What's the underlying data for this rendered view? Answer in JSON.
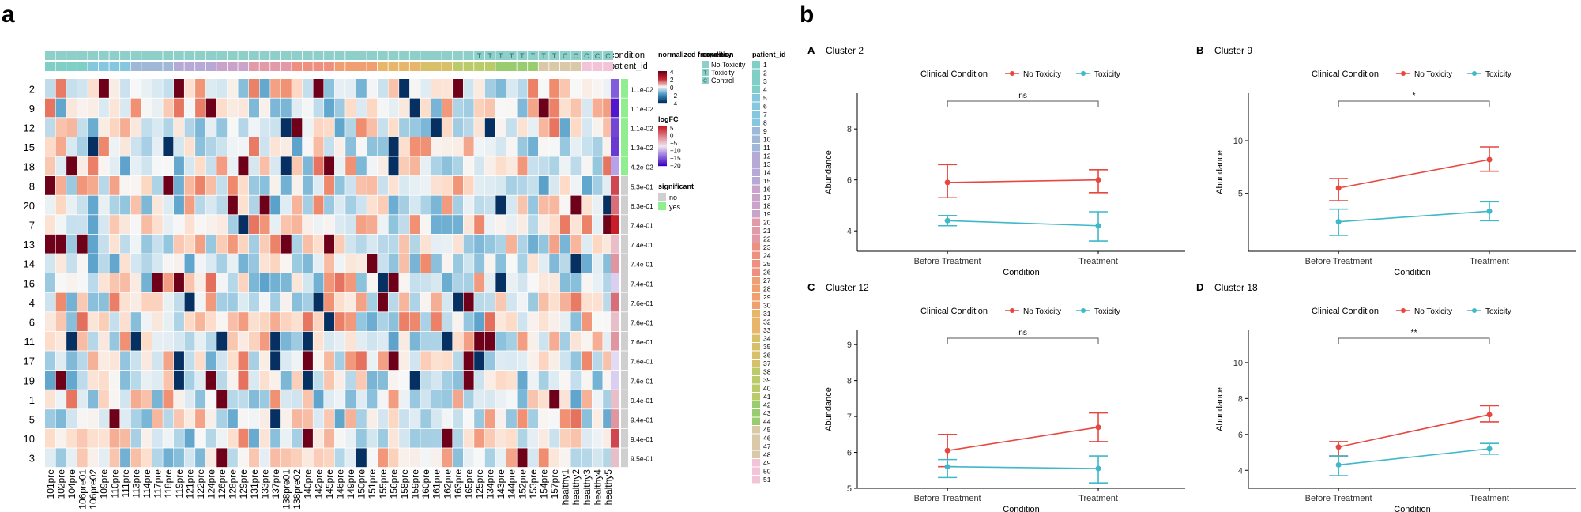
{
  "panel_a": {
    "label": "a",
    "columns": [
      "101pre",
      "102pre",
      "104pre",
      "106pre01",
      "106pre02",
      "109pre",
      "110pre",
      "111pre",
      "113pre",
      "114pre",
      "117pre",
      "118pre",
      "119pre",
      "121pre",
      "122pre",
      "124pre",
      "126pre",
      "128pre",
      "129pre",
      "131pre",
      "133pre",
      "137pre",
      "138pre01",
      "138pre02",
      "140pre",
      "142pre",
      "145pre",
      "146pre",
      "149pre",
      "150pre",
      "151pre",
      "155pre",
      "156pre",
      "158pre",
      "159pre",
      "160pre",
      "161pre",
      "162pre",
      "163pre",
      "165pre",
      "125pre",
      "134pre",
      "143pre",
      "144pre",
      "152pre",
      "153pre",
      "154pre",
      "157pre",
      "healthy1",
      "healthy2",
      "healthy3",
      "healthy4",
      "healthy5"
    ],
    "rows": [
      "2",
      "9",
      "12",
      "15",
      "18",
      "8",
      "20",
      "7",
      "13",
      "14",
      "16",
      "4",
      "6",
      "11",
      "17",
      "19",
      "1",
      "5",
      "10",
      "3"
    ],
    "pvalues": [
      "1.1e-02",
      "1.1e-02",
      "1.1e-02",
      "1.3e-02",
      "4.2e-02",
      "5.3e-01",
      "6.3e-01",
      "7.4e-01",
      "7.4e-01",
      "7.4e-01",
      "7.4e-01",
      "7.6e-01",
      "7.6e-01",
      "7.6e-01",
      "7.6e-01",
      "7.6e-01",
      "9.4e-01",
      "9.4e-01",
      "9.4e-01",
      "9.5e-01"
    ],
    "significant": [
      "yes",
      "yes",
      "yes",
      "yes",
      "yes",
      "no",
      "no",
      "no",
      "no",
      "no",
      "no",
      "no",
      "no",
      "no",
      "no",
      "no",
      "no",
      "no",
      "no",
      "no"
    ],
    "logfc": [
      -12,
      -18,
      -14,
      -15,
      -6,
      4,
      3,
      5,
      1,
      2,
      -2,
      3,
      1,
      2,
      -1,
      -2,
      1,
      2,
      4,
      1
    ],
    "condition_code": [
      "",
      "",
      "",
      "",
      "",
      "",
      "",
      "",
      "",
      "",
      "",
      "",
      "",
      "",
      "",
      "",
      "",
      "",
      "",
      "",
      "",
      "",
      "",
      "",
      "",
      "",
      "",
      "",
      "",
      "",
      "",
      "",
      "",
      "",
      "",
      "",
      "",
      "",
      "",
      "",
      "T",
      "T",
      "T",
      "T",
      "T",
      "T",
      "T",
      "T",
      "C",
      "C",
      "C",
      "C",
      "C"
    ],
    "condition_label": "condition",
    "patient_id_label": "patient_id",
    "legend": {
      "normalized_frequency_title": "normalized frequency",
      "frequency_ticks": [
        "4",
        "2",
        "0",
        "−2",
        "−4"
      ],
      "logfc_title": "logFC",
      "logfc_ticks": [
        "5",
        "0",
        "−5",
        "−10",
        "−15",
        "−20"
      ],
      "significant_title": "significant",
      "significant_items": [
        "no",
        "yes"
      ],
      "condition_title": "condition",
      "condition_items": [
        {
          "code": "",
          "label": "No Toxicity"
        },
        {
          "code": "T",
          "label": "Toxicity"
        },
        {
          "code": "C",
          "label": "Control"
        }
      ],
      "patient_id_title": "patient_id",
      "patient_ids": [
        "1",
        "2",
        "3",
        "4",
        "5",
        "6",
        "7",
        "8",
        "9",
        "10",
        "11",
        "12",
        "13",
        "14",
        "15",
        "16",
        "17",
        "18",
        "19",
        "20",
        "21",
        "22",
        "23",
        "24",
        "25",
        "26",
        "27",
        "28",
        "29",
        "30",
        "31",
        "32",
        "33",
        "34",
        "35",
        "36",
        "37",
        "38",
        "39",
        "40",
        "41",
        "42",
        "43",
        "44",
        "45",
        "46",
        "47",
        "48",
        "49",
        "50",
        "51"
      ]
    },
    "colors": {
      "condition_none": "#8ecfc9",
      "condition_tox": "#8ecfc9",
      "condition_ctrl": "#8ecfc9",
      "sig_yes": "#90ee90",
      "sig_no": "#cfcfcf"
    }
  },
  "panel_b": {
    "label": "b",
    "legend_title": "Clinical Condition",
    "series_names": [
      "No Toxicity",
      "Toxicity"
    ],
    "series_colors": [
      "#e8473f",
      "#3fb8c9"
    ],
    "xlabel": "Condition",
    "ylabel": "Abundance"
  },
  "chart_data": [
    {
      "type": "line",
      "letter": "A",
      "title": "Cluster 2",
      "categories": [
        "Before Treatment",
        "Treatment"
      ],
      "ylim": [
        3.2,
        9.4
      ],
      "yticks": [
        4,
        6,
        8
      ],
      "sig": "ns",
      "series": [
        {
          "name": "No Toxicity",
          "values": [
            5.9,
            6.0
          ],
          "err": [
            [
              5.3,
              6.6
            ],
            [
              5.5,
              6.4
            ]
          ]
        },
        {
          "name": "Toxicity",
          "values": [
            4.4,
            4.2
          ],
          "err": [
            [
              4.2,
              4.6
            ],
            [
              3.6,
              4.75
            ]
          ]
        }
      ]
    },
    {
      "type": "line",
      "letter": "B",
      "title": "Cluster 9",
      "categories": [
        "Before Treatment",
        "Treatment"
      ],
      "ylim": [
        -0.5,
        14.5
      ],
      "yticks": [
        5,
        10
      ],
      "sig": "*",
      "series": [
        {
          "name": "No Toxicity",
          "values": [
            5.5,
            8.2
          ],
          "err": [
            [
              4.3,
              6.4
            ],
            [
              7.1,
              9.4
            ]
          ]
        },
        {
          "name": "Toxicity",
          "values": [
            2.3,
            3.3
          ],
          "err": [
            [
              1.0,
              3.5
            ],
            [
              2.4,
              4.2
            ]
          ]
        }
      ]
    },
    {
      "type": "line",
      "letter": "C",
      "title": "Cluster 12",
      "categories": [
        "Before Treatment",
        "Treatment"
      ],
      "ylim": [
        5.0,
        9.4
      ],
      "yticks": [
        5,
        6,
        7,
        8,
        9
      ],
      "sig": "ns",
      "series": [
        {
          "name": "No Toxicity",
          "values": [
            6.05,
            6.7
          ],
          "err": [
            [
              5.6,
              6.5
            ],
            [
              6.3,
              7.1
            ]
          ]
        },
        {
          "name": "Toxicity",
          "values": [
            5.6,
            5.55
          ],
          "err": [
            [
              5.3,
              5.8
            ],
            [
              5.15,
              5.9
            ]
          ]
        }
      ]
    },
    {
      "type": "line",
      "letter": "D",
      "title": "Cluster 18",
      "categories": [
        "Before Treatment",
        "Treatment"
      ],
      "ylim": [
        3.0,
        11.8
      ],
      "yticks": [
        4,
        6,
        8,
        10
      ],
      "sig": "**",
      "series": [
        {
          "name": "No Toxicity",
          "values": [
            5.3,
            7.1
          ],
          "err": [
            [
              4.8,
              5.6
            ],
            [
              6.7,
              7.6
            ]
          ]
        },
        {
          "name": "Toxicity",
          "values": [
            4.3,
            5.2
          ],
          "err": [
            [
              3.7,
              4.8
            ],
            [
              4.9,
              5.5
            ]
          ]
        }
      ]
    }
  ]
}
